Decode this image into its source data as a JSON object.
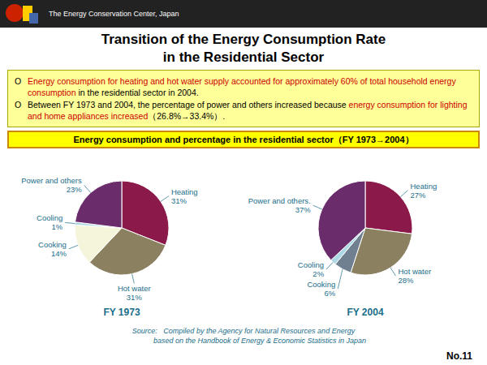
{
  "header_text": "The Energy Conservation Center, Japan",
  "title_lines": [
    "Transition of the Energy Consumption Rate",
    "in the Residential Sector"
  ],
  "notes": [
    {
      "bullet": "O",
      "runs": [
        {
          "text": "Energy consumption for heating  and hot water supply accounted for approximately 60% of total household  energy consumption ",
          "color": "#cc0000"
        },
        {
          "text": "in the residential sector in 2004.",
          "color": "#000000"
        }
      ]
    },
    {
      "bullet": "O",
      "runs": [
        {
          "text": "Between FY 1973 and 2004, the percentage of power and others increased because ",
          "color": "#000000"
        },
        {
          "text": "energy consumption for lighting and home appliances increased",
          "color": "#cc0000"
        },
        {
          "text": "（26.8%→33.4%）.",
          "color": "#000000"
        }
      ]
    }
  ],
  "chart_label": "Energy consumption and percentage in the residential sector（FY 1973→2004）",
  "chart_data": [
    {
      "type": "pie",
      "title": "FY 1973",
      "categories": [
        "Heating",
        "Hot water",
        "Cooking",
        "Cooling",
        "Power and others"
      ],
      "values": [
        31,
        31,
        14,
        1,
        23
      ],
      "value_labels": [
        "31%",
        "31%",
        "14%",
        "1%",
        "23%"
      ],
      "colors": [
        "#8B1A4A",
        "#8B8060",
        "#F5F5DC",
        "#ADD8E6",
        "#6B2C6B"
      ],
      "data_labels": true
    },
    {
      "type": "pie",
      "title": "FY 2004",
      "categories": [
        "Heating",
        "Hot water",
        "Cooking",
        "Cooling",
        "Power and others."
      ],
      "values": [
        27,
        28,
        6,
        2,
        37
      ],
      "value_labels": [
        "27%",
        "28%",
        "6%",
        "2%",
        "37%"
      ],
      "colors": [
        "#8B1A4A",
        "#8B8060",
        "#708090",
        "#ADD8E6",
        "#6B2C6B"
      ],
      "data_labels": true
    }
  ],
  "source_lines": [
    "Source:   Compiled by the Agency for Natural Resources and Energy",
    "                based on the Handbook of Energy & Economic Statistics in Japan"
  ],
  "page_number": "No.11"
}
